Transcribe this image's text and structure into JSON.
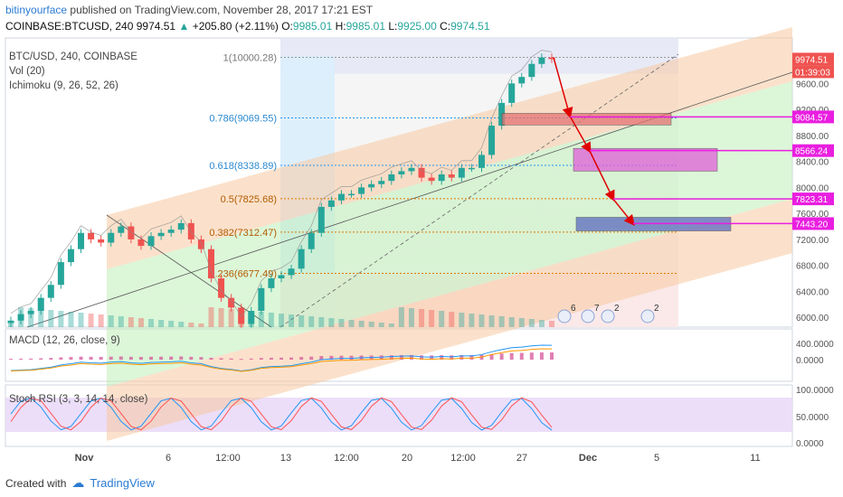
{
  "header": {
    "user": "bitinyourface",
    "published": "published on TradingView.com, November 28, 2017 17:21 EST",
    "symbol": "COINBASE:BTCUSD, 240",
    "last": "9974.51",
    "change": "+205.80 (+2.11%)",
    "o_label": "O:",
    "o": "9985.01",
    "h_label": "H:",
    "h": "9985.01",
    "l_label": "L:",
    "l": "9925.00",
    "c_label": "C:",
    "c": "9974.51"
  },
  "indicators": {
    "main": "BTC/USD, 240, COINBASE",
    "vol": "Vol (20)",
    "ichimoku": "Ichimoku (9, 26, 52, 26)",
    "macd": "MACD (12, 26, close, 9)",
    "stoch": "Stoch RSI (3, 3, 14, 14, close)"
  },
  "colors": {
    "up": "#26a69a",
    "down": "#ef5350",
    "fib_blue": "#2196f3",
    "magenta": "#e91ee0",
    "arrow": "#e00000",
    "channel_orange": "#f8c9a0",
    "channel_green": "#bfeeb8"
  },
  "chart_data": {
    "type": "line",
    "price_axis_ticks": [
      "9600.00",
      "9200.00",
      "8800.00",
      "8400.00",
      "8000.00",
      "7600.00",
      "7200.00",
      "6800.00",
      "6400.00",
      "6000.00"
    ],
    "price_range": [
      5850,
      10300
    ],
    "x_tick_labels": [
      "Nov",
      "6",
      "12:00",
      "13",
      "12:00",
      "20",
      "12:00",
      "27",
      "Dec",
      "5",
      "11"
    ],
    "fib_levels": [
      {
        "label": "1(10000.28)",
        "price": 10000.28
      },
      {
        "label": "0.786(9069.55)",
        "price": 9069.55
      },
      {
        "label": "0.618(8338.89)",
        "price": 8338.89
      },
      {
        "label": "0.5(7825.68)",
        "price": 7825.68
      },
      {
        "label": "0.382(7312.47)",
        "price": 7312.47
      },
      {
        "label": "0.236(6677.49)",
        "price": 6677.49
      }
    ],
    "price_markers": [
      {
        "label": "9974.51",
        "color": "#ef5350"
      },
      {
        "label": "01:39:03",
        "color": "#ef5350"
      },
      {
        "label": "9084.57",
        "color": "#e91ee0"
      },
      {
        "label": "8566.24",
        "color": "#e91ee0"
      },
      {
        "label": "7823.31",
        "color": "#e91ee0"
      },
      {
        "label": "7443.20",
        "color": "#e91ee0"
      }
    ],
    "close_path": [
      5950,
      6050,
      6100,
      6300,
      6500,
      6850,
      7050,
      7300,
      7200,
      7150,
      7300,
      7400,
      7200,
      7100,
      7250,
      7300,
      7350,
      7450,
      7200,
      7050,
      6600,
      6300,
      6150,
      5900,
      6100,
      6450,
      6600,
      6650,
      6750,
      7050,
      7300,
      7700,
      7800,
      7900,
      7900,
      8000,
      8050,
      8100,
      8200,
      8250,
      8300,
      8150,
      8100,
      8200,
      8150,
      8300,
      8300,
      8500,
      8950,
      9300,
      9600,
      9700,
      9900,
      10000,
      9975
    ],
    "zone_boxes": [
      {
        "price_top": 9140,
        "price_bottom": 8960,
        "color": "#e57373"
      },
      {
        "price_top": 8600,
        "price_bottom": 8250,
        "color": "#e060d8"
      },
      {
        "price_top": 7540,
        "price_bottom": 7330,
        "color": "#5c6bc0"
      }
    ],
    "forecast_arrow_prices": [
      10000,
      9100,
      8560,
      7820,
      7440
    ],
    "macd_axis_ticks": [
      "400.0000",
      "0.0000"
    ],
    "stoch_axis_ticks": [
      "100.0000",
      "50.0000",
      "0.0000"
    ],
    "event_badges": [
      "6",
      "7",
      "2",
      "2"
    ]
  },
  "footer": {
    "created": "Created with",
    "brand": "TradingView"
  }
}
